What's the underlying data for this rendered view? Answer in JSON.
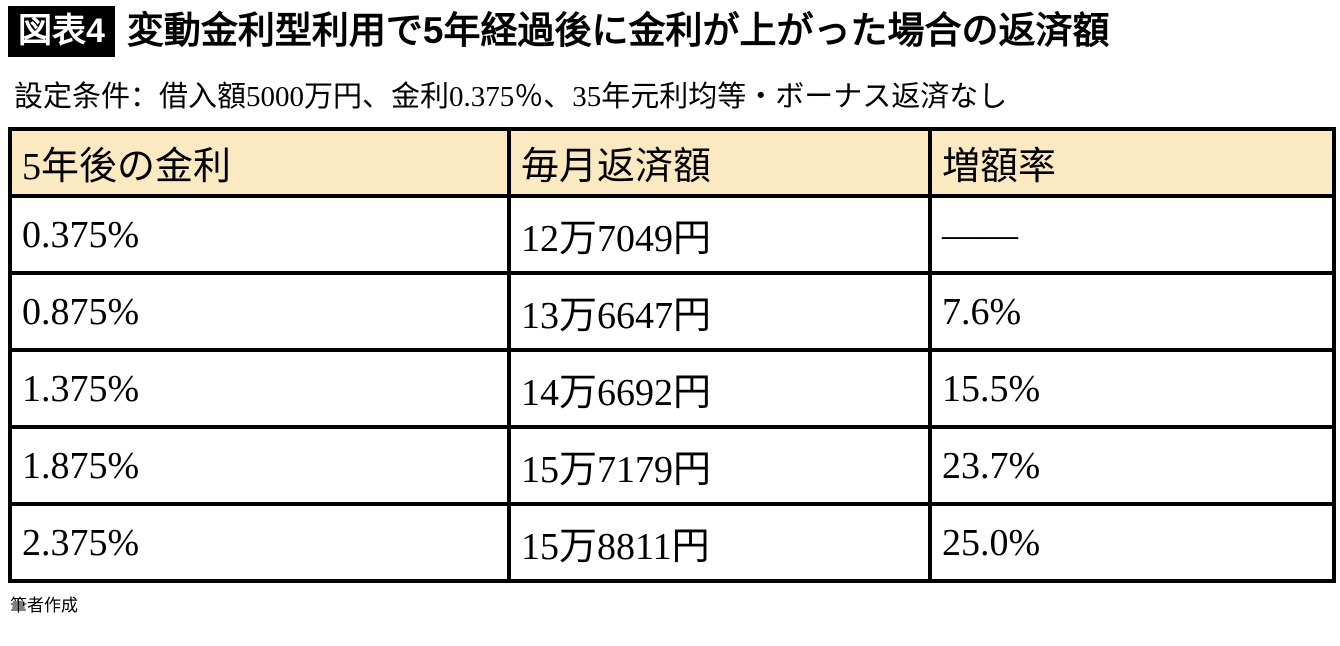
{
  "header": {
    "badge": "図表4",
    "title": "変動金利型利用で5年経過後に金利が上がった場合の返済額"
  },
  "conditions": "設定条件：借入額5000万円、金利0.375％、35年元利均等・ボーナス返済なし",
  "table": {
    "columns": [
      "5年後の金利",
      "毎月返済額",
      "増額率"
    ],
    "rows": [
      [
        "0.375%",
        "12万7049円",
        "――"
      ],
      [
        "0.875%",
        "13万6647円",
        "7.6%"
      ],
      [
        "1.375%",
        "14万6692円",
        "15.5%"
      ],
      [
        "1.875%",
        "15万7179円",
        "23.7%"
      ],
      [
        "2.375%",
        "15万8811円",
        "25.0%"
      ]
    ]
  },
  "footer": {
    "source": "筆者作成"
  },
  "colors": {
    "header_row_bg": "#fbe9c1",
    "border": "#000000",
    "badge_bg": "#000000",
    "badge_text": "#ffffff"
  },
  "chart_data": {
    "type": "table",
    "title": "変動金利型利用で5年経過後に金利が上がった場合の返済額",
    "subtitle": "設定条件：借入額5000万円、金利0.375％、35年元利均等・ボーナス返済なし",
    "columns": [
      "5年後の金利",
      "毎月返済額",
      "増額率"
    ],
    "rows": [
      [
        "0.375%",
        "12万7049円",
        "――"
      ],
      [
        "0.875%",
        "13万6647円",
        "7.6%"
      ],
      [
        "1.375%",
        "14万6692円",
        "15.5%"
      ],
      [
        "1.875%",
        "15万7179円",
        "23.7%"
      ],
      [
        "2.375%",
        "15万8811円",
        "25.0%"
      ]
    ],
    "rate_after_5_years_pct": [
      0.375,
      0.875,
      1.375,
      1.875,
      2.375
    ],
    "monthly_payment_yen": [
      127049,
      136647,
      146692,
      157179,
      158811
    ],
    "increase_rate_pct": [
      null,
      7.6,
      15.5,
      23.7,
      25.0
    ],
    "source": "筆者作成"
  }
}
